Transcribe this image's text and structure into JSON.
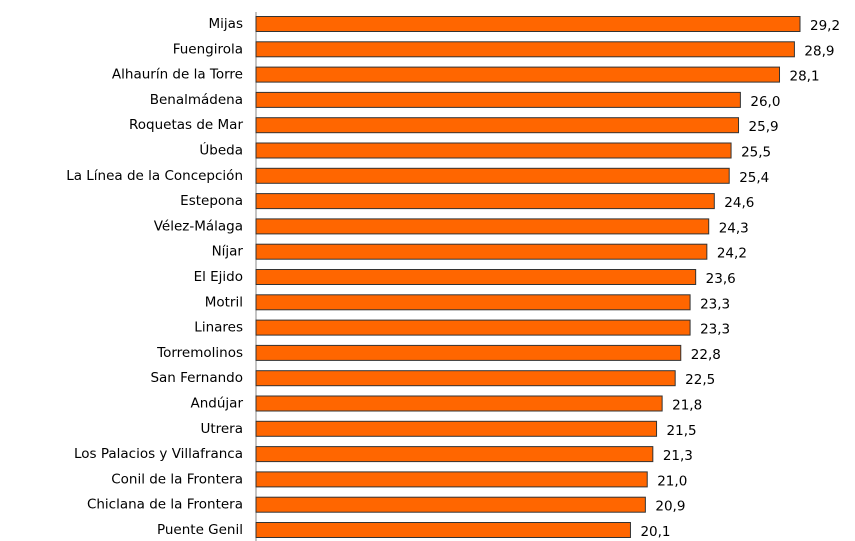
{
  "chart_data": {
    "type": "bar",
    "orientation": "horizontal",
    "color": "#ff6600",
    "categories": [
      "Mijas",
      "Fuengirola",
      "Alhaurín de la Torre",
      "Benalmádena",
      "Roquetas de Mar",
      "Úbeda",
      "La Línea de la Concepción",
      "Estepona",
      "Vélez-Málaga",
      "Níjar",
      "El Ejido",
      "Motril",
      "Linares",
      "Torremolinos",
      "San Fernando",
      "Andújar",
      "Utrera",
      "Los Palacios y Villafranca",
      "Conil de la Frontera",
      "Chiclana de la Frontera",
      "Puente Genil"
    ],
    "values": [
      29.2,
      28.9,
      28.1,
      26.0,
      25.9,
      25.5,
      25.4,
      24.6,
      24.3,
      24.2,
      23.6,
      23.3,
      23.3,
      22.8,
      22.5,
      21.8,
      21.5,
      21.3,
      21.0,
      20.9,
      20.1
    ],
    "value_labels": [
      "29,2",
      "28,9",
      "28,1",
      "26,0",
      "25,9",
      "25,5",
      "25,4",
      "24,6",
      "24,3",
      "24,2",
      "23,6",
      "23,3",
      "23,3",
      "22,8",
      "22,5",
      "21,8",
      "21,5",
      "21,3",
      "21,0",
      "20,9",
      "20,1"
    ]
  }
}
